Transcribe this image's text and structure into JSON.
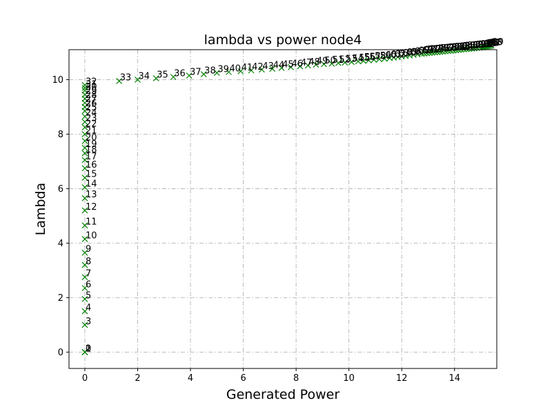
{
  "chart_data": {
    "type": "scatter",
    "title": "lambda vs power node4",
    "xlabel": "Generated Power",
    "ylabel": "Lambda",
    "xlim": [
      -0.6,
      15.6
    ],
    "ylim": [
      -0.6,
      11.1
    ],
    "xticks": [
      0,
      2,
      4,
      6,
      8,
      10,
      12,
      14
    ],
    "yticks": [
      0,
      2,
      4,
      6,
      8,
      10
    ],
    "grid": true,
    "grid_style": "dashdot",
    "marker": "x",
    "marker_color": "#008000",
    "label_offset": "upper-right of each point",
    "labels": [
      "0",
      "1",
      "2",
      "3",
      "4",
      "5",
      "6",
      "7",
      "8",
      "9",
      "10",
      "11",
      "12",
      "13",
      "14",
      "15",
      "16",
      "17",
      "18",
      "19",
      "20",
      "21",
      "22",
      "23",
      "24",
      "25",
      "26",
      "27",
      "28",
      "29",
      "30",
      "31",
      "32",
      "33",
      "34",
      "35",
      "36",
      "37",
      "38",
      "39",
      "40",
      "41",
      "42",
      "43",
      "44",
      "45",
      "46",
      "47",
      "48",
      "49",
      "50",
      "51",
      "52",
      "53",
      "54",
      "55",
      "56",
      "57",
      "58",
      "59",
      "60",
      "61",
      "62",
      "63",
      "64",
      "65",
      "66",
      "67",
      "68",
      "69",
      "70",
      "71",
      "72",
      "73",
      "74",
      "75",
      "76",
      "77",
      "78",
      "79",
      "80",
      "81",
      "82",
      "83",
      "84",
      "85",
      "86",
      "87",
      "88",
      "89",
      "90",
      "91",
      "92",
      "93",
      "94",
      "95",
      "96",
      "97",
      "98",
      "99"
    ],
    "x": [
      0,
      0,
      0,
      0,
      0,
      0,
      0,
      0,
      0,
      0,
      0,
      0,
      0,
      0,
      0,
      0,
      0,
      0,
      0,
      0,
      0,
      0,
      0,
      0,
      0,
      0,
      0,
      0,
      0,
      0,
      0,
      0,
      0,
      1.3,
      2.0,
      2.7,
      3.35,
      3.95,
      4.5,
      5.0,
      5.45,
      5.9,
      6.3,
      6.7,
      7.1,
      7.45,
      7.8,
      8.15,
      8.45,
      8.75,
      9.05,
      9.35,
      9.6,
      9.85,
      10.1,
      10.35,
      10.55,
      10.75,
      10.95,
      11.15,
      11.35,
      11.55,
      11.7,
      11.85,
      12.0,
      12.15,
      12.3,
      12.45,
      12.6,
      12.75,
      12.85,
      12.95,
      13.05,
      13.15,
      13.25,
      13.35,
      13.45,
      13.55,
      13.65,
      13.75,
      13.85,
      13.95,
      14.05,
      14.15,
      14.25,
      14.35,
      14.45,
      14.55,
      14.65,
      14.75,
      14.85,
      14.95,
      15.05,
      15.1,
      15.15,
      15.2,
      15.25,
      15.3,
      15.35,
      15.4
    ],
    "y": [
      0,
      0,
      0,
      1.0,
      1.5,
      1.95,
      2.35,
      2.75,
      3.2,
      3.65,
      4.15,
      4.65,
      5.2,
      5.65,
      6.05,
      6.4,
      6.75,
      7.05,
      7.3,
      7.5,
      7.75,
      8.0,
      8.25,
      8.45,
      8.65,
      8.85,
      9.0,
      9.15,
      9.3,
      9.45,
      9.6,
      9.7,
      9.8,
      9.95,
      10.0,
      10.05,
      10.1,
      10.15,
      10.2,
      10.25,
      10.28,
      10.31,
      10.34,
      10.37,
      10.4,
      10.43,
      10.46,
      10.49,
      10.52,
      10.55,
      10.57,
      10.59,
      10.61,
      10.63,
      10.65,
      10.67,
      10.69,
      10.71,
      10.73,
      10.75,
      10.77,
      10.79,
      10.81,
      10.83,
      10.85,
      10.87,
      10.89,
      10.91,
      10.93,
      10.95,
      10.96,
      10.97,
      10.98,
      10.99,
      11.0,
      11.01,
      11.02,
      11.03,
      11.04,
      11.05,
      11.06,
      11.07,
      11.08,
      11.09,
      11.1,
      11.11,
      11.12,
      11.13,
      11.14,
      11.15,
      11.16,
      11.17,
      11.18,
      11.19,
      11.2,
      11.21,
      11.22,
      11.23,
      11.24,
      11.25
    ]
  }
}
